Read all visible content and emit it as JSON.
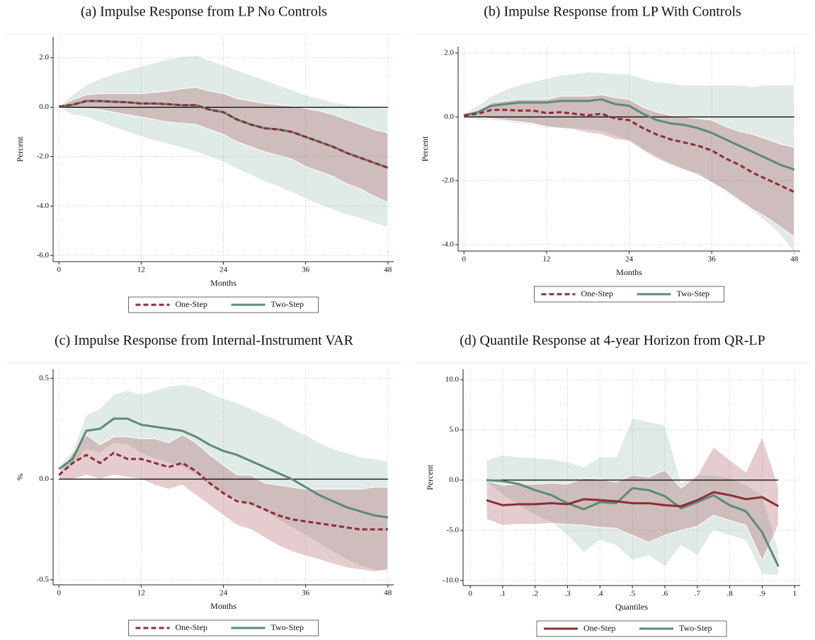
{
  "chart_data": [
    {
      "type": "line",
      "title": "(a) Impulse Response from LP No Controls",
      "x_label": "Months",
      "y_label": "Percent",
      "x": [
        0,
        2,
        4,
        6,
        8,
        10,
        12,
        14,
        16,
        18,
        20,
        22,
        24,
        26,
        28,
        30,
        32,
        34,
        36,
        38,
        40,
        42,
        44,
        46,
        48
      ],
      "xlim": [
        -0.85,
        48.85
      ],
      "xticks": [
        0,
        12,
        24,
        36,
        48
      ],
      "ylim": [
        -6.25,
        2.85
      ],
      "yticks": [
        {
          "value": 2,
          "label": "2.0"
        },
        {
          "value": 0,
          "label": "0.0"
        },
        {
          "value": -2,
          "label": "-2.0"
        },
        {
          "value": -4,
          "label": "-4.0"
        },
        {
          "value": -6,
          "label": "-6.0"
        }
      ],
      "grid": true,
      "reference_line": 0,
      "legend": "bottom",
      "series": [
        {
          "name": "One-Step",
          "color": "#8c2d36",
          "band_color": "rgba(150,55,65,0.25)",
          "dash": true,
          "values": [
            0.02,
            0.1,
            0.25,
            0.25,
            0.22,
            0.2,
            0.15,
            0.15,
            0.12,
            0.08,
            0.08,
            -0.1,
            -0.2,
            -0.5,
            -0.7,
            -0.85,
            -0.9,
            -1.0,
            -1.2,
            -1.4,
            -1.6,
            -1.85,
            -2.05,
            -2.25,
            -2.45
          ],
          "lower": [
            0,
            -0.05,
            -0.05,
            -0.1,
            -0.2,
            -0.3,
            -0.4,
            -0.5,
            -0.6,
            -0.65,
            -0.7,
            -0.9,
            -1.1,
            -1.4,
            -1.6,
            -1.8,
            -1.95,
            -2.1,
            -2.4,
            -2.6,
            -2.8,
            -3.1,
            -3.3,
            -3.6,
            -3.85
          ],
          "upper": [
            0.05,
            0.3,
            0.5,
            0.55,
            0.55,
            0.55,
            0.55,
            0.6,
            0.65,
            0.75,
            0.8,
            0.65,
            0.55,
            0.35,
            0.25,
            0.15,
            0.1,
            0.05,
            -0.05,
            -0.15,
            -0.3,
            -0.5,
            -0.7,
            -0.9,
            -1.05
          ]
        },
        {
          "name": "Two-Step",
          "color": "#5b8a79",
          "band_color": "rgba(100,150,130,0.2)",
          "dash": false,
          "values": [
            0.02,
            0.1,
            0.25,
            0.25,
            0.22,
            0.2,
            0.15,
            0.15,
            0.12,
            0.08,
            0.08,
            -0.1,
            -0.2,
            -0.5,
            -0.7,
            -0.85,
            -0.9,
            -1.0,
            -1.2,
            -1.4,
            -1.6,
            -1.85,
            -2.05,
            -2.25,
            -2.45
          ],
          "lower": [
            0,
            -0.3,
            -0.4,
            -0.6,
            -0.8,
            -1.0,
            -1.2,
            -1.35,
            -1.5,
            -1.65,
            -1.8,
            -2.0,
            -2.2,
            -2.5,
            -2.75,
            -3.0,
            -3.2,
            -3.45,
            -3.7,
            -3.95,
            -4.15,
            -4.35,
            -4.5,
            -4.7,
            -4.85
          ],
          "upper": [
            0.05,
            0.5,
            0.9,
            1.15,
            1.35,
            1.5,
            1.65,
            1.8,
            1.95,
            2.05,
            2.1,
            1.9,
            1.7,
            1.5,
            1.3,
            1.1,
            0.9,
            0.7,
            0.5,
            0.35,
            0.2,
            0.1,
            0.02,
            -0.02,
            -0.05
          ]
        }
      ]
    },
    {
      "type": "line",
      "title": "(b) Impulse Response from LP With Controls",
      "x_label": "Months",
      "y_label": "Percent",
      "x": [
        0,
        2,
        4,
        6,
        8,
        10,
        12,
        14,
        16,
        18,
        20,
        22,
        24,
        26,
        28,
        30,
        32,
        34,
        36,
        38,
        40,
        42,
        44,
        46,
        48
      ],
      "xlim": [
        -0.85,
        48.85
      ],
      "xticks": [
        0,
        12,
        24,
        36,
        48
      ],
      "ylim": [
        -4.2,
        2.2
      ],
      "yticks": [
        {
          "value": 2,
          "label": "2.0"
        },
        {
          "value": 0,
          "label": "0.0"
        },
        {
          "value": -2,
          "label": "-2.0"
        },
        {
          "value": -4,
          "label": "-4.0"
        }
      ],
      "grid": true,
      "reference_line": 0,
      "legend": "bottom",
      "series": [
        {
          "name": "One-Step",
          "color": "#8c2d36",
          "band_color": "rgba(150,55,65,0.25)",
          "dash": true,
          "values": [
            0.05,
            0.1,
            0.22,
            0.22,
            0.2,
            0.2,
            0.12,
            0.15,
            0.1,
            0.05,
            0.1,
            -0.05,
            -0.1,
            -0.35,
            -0.55,
            -0.7,
            -0.8,
            -0.9,
            -1.05,
            -1.3,
            -1.5,
            -1.75,
            -1.95,
            -2.15,
            -2.35
          ],
          "lower": [
            0,
            0,
            -0.05,
            -0.1,
            -0.15,
            -0.2,
            -0.3,
            -0.35,
            -0.4,
            -0.5,
            -0.55,
            -0.7,
            -0.75,
            -1.05,
            -1.3,
            -1.5,
            -1.65,
            -1.8,
            -2.05,
            -2.3,
            -2.6,
            -2.9,
            -3.15,
            -3.45,
            -3.75
          ],
          "upper": [
            0.08,
            0.2,
            0.45,
            0.5,
            0.55,
            0.55,
            0.55,
            0.65,
            0.65,
            0.65,
            0.7,
            0.6,
            0.55,
            0.3,
            0.15,
            0.05,
            0,
            -0.05,
            -0.1,
            -0.3,
            -0.45,
            -0.55,
            -0.7,
            -0.85,
            -0.95
          ]
        },
        {
          "name": "Two-Step",
          "color": "#5b8a79",
          "band_color": "rgba(100,150,130,0.2)",
          "dash": false,
          "values": [
            0.05,
            0.15,
            0.35,
            0.4,
            0.45,
            0.45,
            0.45,
            0.5,
            0.5,
            0.5,
            0.55,
            0.4,
            0.35,
            0.1,
            -0.1,
            -0.2,
            -0.25,
            -0.35,
            -0.5,
            -0.7,
            -0.9,
            -1.1,
            -1.3,
            -1.5,
            -1.65
          ],
          "lower": [
            0,
            -0.1,
            -0.1,
            -0.15,
            -0.2,
            -0.25,
            -0.35,
            -0.35,
            -0.35,
            -0.4,
            -0.45,
            -0.6,
            -0.75,
            -1.0,
            -1.25,
            -1.45,
            -1.65,
            -1.85,
            -2.05,
            -2.35,
            -2.65,
            -2.95,
            -3.3,
            -3.7,
            -4.25
          ],
          "upper": [
            0.1,
            0.35,
            0.65,
            0.85,
            1.0,
            1.1,
            1.2,
            1.3,
            1.35,
            1.4,
            1.4,
            1.35,
            1.35,
            1.2,
            1.1,
            1.05,
            1.0,
            1.0,
            1.0,
            1.0,
            1.0,
            0.95,
            1.0,
            1.0,
            1.0
          ]
        }
      ]
    },
    {
      "type": "line",
      "title": "(c) Impulse Response from Internal-Instrument VAR",
      "x_label": "Months",
      "y_label": "%",
      "x": [
        0,
        2,
        4,
        6,
        8,
        10,
        12,
        14,
        16,
        18,
        20,
        22,
        24,
        26,
        28,
        30,
        32,
        34,
        36,
        38,
        40,
        42,
        44,
        46,
        48
      ],
      "xlim": [
        -0.85,
        48.85
      ],
      "xticks": [
        0,
        12,
        24,
        36,
        48
      ],
      "ylim": [
        -0.525,
        0.546
      ],
      "yticks": [
        {
          "value": 0.5,
          "label": "0.5"
        },
        {
          "value": 0,
          "label": "0.0"
        },
        {
          "value": -0.5,
          "label": "-0.5"
        }
      ],
      "grid": true,
      "reference_line": 0,
      "legend": "bottom",
      "series": [
        {
          "name": "One-Step",
          "color": "#8c2d36",
          "band_color": "rgba(150,55,65,0.25)",
          "dash": true,
          "values": [
            0.02,
            0.08,
            0.12,
            0.08,
            0.13,
            0.1,
            0.1,
            0.08,
            0.06,
            0.08,
            0.04,
            -0.02,
            -0.07,
            -0.11,
            -0.12,
            -0.15,
            -0.18,
            -0.2,
            -0.21,
            -0.22,
            -0.23,
            -0.24,
            -0.25,
            -0.25,
            -0.25
          ],
          "lower": [
            0,
            0,
            0.02,
            0,
            0.02,
            0.01,
            0,
            -0.03,
            -0.05,
            -0.03,
            -0.08,
            -0.13,
            -0.18,
            -0.23,
            -0.25,
            -0.29,
            -0.33,
            -0.36,
            -0.38,
            -0.4,
            -0.42,
            -0.44,
            -0.45,
            -0.46,
            -0.45
          ],
          "upper": [
            0.03,
            0.13,
            0.22,
            0.17,
            0.21,
            0.21,
            0.2,
            0.2,
            0.18,
            0.22,
            0.18,
            0.12,
            0.07,
            0.02,
            0.02,
            -0.02,
            -0.03,
            -0.04,
            -0.05,
            -0.05,
            -0.05,
            -0.05,
            -0.05,
            -0.04,
            -0.04
          ]
        },
        {
          "name": "Two-Step",
          "color": "#5b8a79",
          "band_color": "rgba(100,150,130,0.2)",
          "dash": false,
          "values": [
            0.05,
            0.1,
            0.24,
            0.25,
            0.3,
            0.3,
            0.27,
            0.26,
            0.25,
            0.24,
            0.21,
            0.17,
            0.14,
            0.12,
            0.09,
            0.06,
            0.03,
            0.0,
            -0.04,
            -0.08,
            -0.11,
            -0.14,
            -0.16,
            -0.18,
            -0.19
          ],
          "lower": [
            0.03,
            0.07,
            0.15,
            0.13,
            0.18,
            0.17,
            0.13,
            0.1,
            0.08,
            0.06,
            0.02,
            -0.03,
            -0.07,
            -0.1,
            -0.13,
            -0.16,
            -0.2,
            -0.24,
            -0.28,
            -0.32,
            -0.36,
            -0.4,
            -0.43,
            -0.45,
            -0.46
          ],
          "upper": [
            0.06,
            0.14,
            0.32,
            0.35,
            0.42,
            0.44,
            0.42,
            0.44,
            0.46,
            0.47,
            0.46,
            0.43,
            0.4,
            0.38,
            0.35,
            0.32,
            0.29,
            0.25,
            0.22,
            0.18,
            0.15,
            0.13,
            0.11,
            0.1,
            0.09
          ]
        }
      ]
    },
    {
      "type": "line",
      "title": "(d) Quantile Response at 4-year Horizon from QR-LP",
      "x_label": "Quantiles",
      "y_label": "Percent",
      "x": [
        0.05,
        0.1,
        0.15,
        0.2,
        0.25,
        0.3,
        0.35,
        0.4,
        0.45,
        0.5,
        0.55,
        0.6,
        0.65,
        0.7,
        0.75,
        0.8,
        0.85,
        0.9,
        0.95
      ],
      "xlim": [
        -0.022,
        1.017
      ],
      "xticks": [
        0,
        {
          "value": 0.1,
          "label": ".1"
        },
        {
          "value": 0.2,
          "label": ".2"
        },
        {
          "value": 0.3,
          "label": ".3"
        },
        {
          "value": 0.4,
          "label": ".4"
        },
        {
          "value": 0.5,
          "label": ".5"
        },
        {
          "value": 0.6,
          "label": ".6"
        },
        {
          "value": 0.7,
          "label": ".7"
        },
        {
          "value": 0.8,
          "label": ".8"
        },
        {
          "value": 0.9,
          "label": ".9"
        },
        1
      ],
      "ylim": [
        -10.5,
        11.05
      ],
      "yticks": [
        {
          "value": 10,
          "label": "10.0"
        },
        {
          "value": 5,
          "label": "5.0"
        },
        {
          "value": 0,
          "label": "0.0"
        },
        {
          "value": -5,
          "label": "-5.0"
        },
        {
          "value": -10,
          "label": "-10.0"
        }
      ],
      "grid": true,
      "reference_line": 0,
      "legend": "bottom",
      "series": [
        {
          "name": "One-Step",
          "color": "#8c2d36",
          "band_color": "rgba(150,55,65,0.25)",
          "dash": false,
          "values": [
            -2,
            -2.5,
            -2.4,
            -2.4,
            -2.3,
            -2.4,
            -1.9,
            -2,
            -2.1,
            -2.3,
            -2.3,
            -2.5,
            -2.6,
            -2,
            -1.2,
            -1.5,
            -1.9,
            -1.7,
            -2.6
          ],
          "lower": [
            -3.9,
            -4.5,
            -4.4,
            -4.4,
            -4.3,
            -4.4,
            -4.5,
            -4.7,
            -4.8,
            -5.5,
            -6.2,
            -5.5,
            -5,
            -4.6,
            -3.5,
            -4,
            -4.5,
            -8,
            -4.5
          ],
          "upper": [
            -0.1,
            -0.5,
            -0.4,
            -0.4,
            -0.3,
            -0.4,
            0.2,
            0.1,
            -0.2,
            0.5,
            0.3,
            1,
            -0.8,
            0.5,
            3.3,
            2,
            0.8,
            4.3,
            -0.7
          ]
        },
        {
          "name": "Two-Step",
          "color": "#5b8a79",
          "band_color": "rgba(100,150,130,0.2)",
          "dash": false,
          "values": [
            0,
            -0.1,
            -0.4,
            -1,
            -1.5,
            -2.3,
            -2.9,
            -2.2,
            -2.3,
            -0.8,
            -1,
            -1.6,
            -2.8,
            -2.2,
            -1.5,
            -2.5,
            -3.1,
            -5.2,
            -8.6
          ],
          "lower": [
            -0.1,
            -1.5,
            -2.5,
            -3.5,
            -4.2,
            -5.5,
            -7.2,
            -6,
            -6.5,
            -8,
            -7.5,
            -8.6,
            -6.5,
            -7.5,
            -5,
            -5.5,
            -6,
            -9.4,
            -9.5
          ],
          "upper": [
            2,
            2.5,
            2.3,
            2.2,
            2.1,
            1.8,
            1.3,
            2.3,
            2.3,
            6.2,
            5.8,
            5.5,
            -0.3,
            0.5,
            0.5,
            0.2,
            -0.5,
            -1.5,
            -7
          ]
        }
      ]
    }
  ]
}
